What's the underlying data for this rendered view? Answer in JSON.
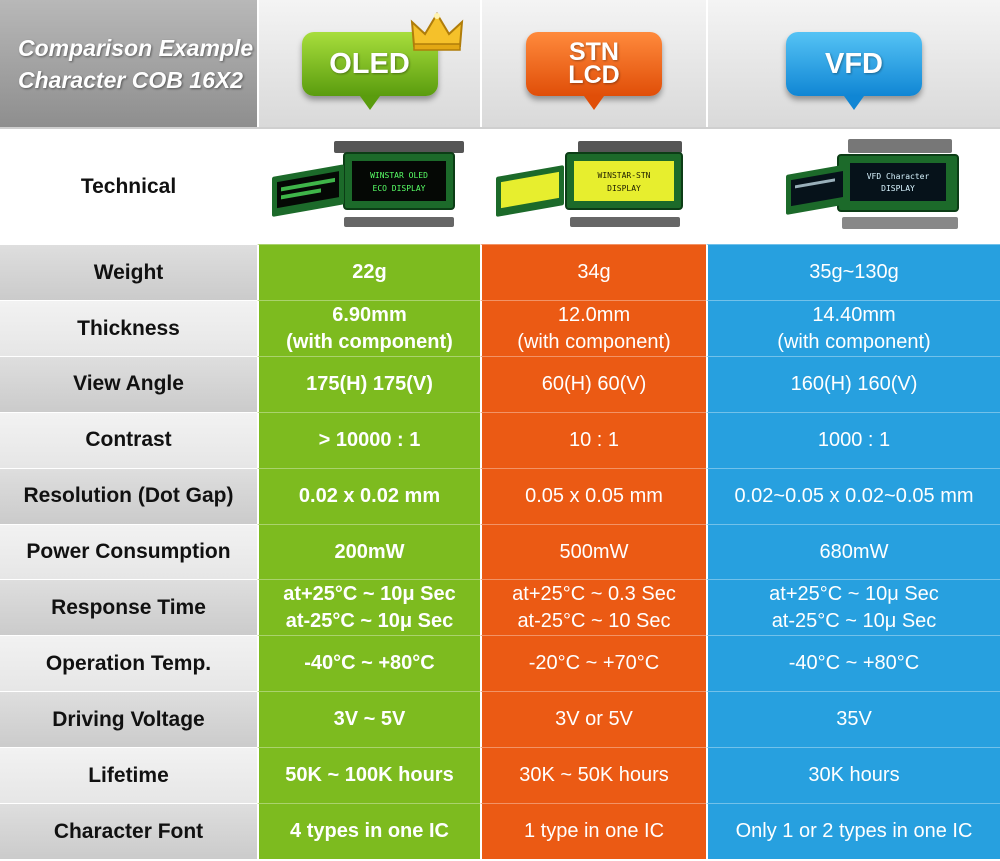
{
  "chart_data": {
    "type": "table",
    "caption_lines": [
      "Comparison Example",
      "Character COB 16X2"
    ],
    "columns": [
      {
        "label": "OLED",
        "color": "#7dbb1f"
      },
      {
        "label": "STN\nLCD",
        "color": "#eb5a14"
      },
      {
        "label": "VFD",
        "color": "#27a0df"
      }
    ],
    "technical_label": "Technical",
    "displays": [
      {
        "line1": "WINSTAR OLED",
        "line2": "ECO DISPLAY",
        "glow": "#58ff66"
      },
      {
        "line1": "WINSTAR-STN",
        "line2": "DISPLAY",
        "glow": "#1d1d00"
      },
      {
        "line1": "VFD Character",
        "line2": "DISPLAY",
        "glow": "#d8f4ff"
      }
    ],
    "rows": [
      {
        "label": "Weight",
        "values": [
          "22g",
          "34g",
          "35g~130g"
        ]
      },
      {
        "label": "Thickness",
        "values": [
          "6.90mm\n(with component)",
          "12.0mm\n(with component)",
          "14.40mm\n(with component)"
        ]
      },
      {
        "label": "View Angle",
        "values": [
          "175(H) 175(V)",
          "60(H) 60(V)",
          "160(H) 160(V)"
        ]
      },
      {
        "label": "Contrast",
        "values": [
          "> 10000 : 1",
          "10 : 1",
          "1000 : 1"
        ]
      },
      {
        "label": "Resolution (Dot Gap)",
        "values": [
          "0.02 x 0.02 mm",
          "0.05 x 0.05 mm",
          "0.02~0.05 x 0.02~0.05 mm"
        ]
      },
      {
        "label": "Power Consumption",
        "values": [
          "200mW",
          "500mW",
          "680mW"
        ]
      },
      {
        "label": "Response Time",
        "values": [
          "at+25°C ~ 10μ Sec\nat-25°C ~ 10μ Sec",
          "at+25°C ~ 0.3 Sec\nat-25°C ~ 10 Sec",
          "at+25°C ~ 10μ Sec\nat-25°C ~ 10μ Sec"
        ]
      },
      {
        "label": "Operation Temp.",
        "values": [
          "-40°C ~ +80°C",
          "-20°C ~ +70°C",
          "-40°C ~ +80°C"
        ]
      },
      {
        "label": "Driving Voltage",
        "values": [
          "3V ~ 5V",
          "3V or 5V",
          "35V"
        ]
      },
      {
        "label": "Lifetime",
        "values": [
          "50K ~ 100K hours",
          "30K ~ 50K hours",
          "30K hours"
        ]
      },
      {
        "label": "Character Font",
        "values": [
          "4 types in one IC",
          "1 type in one IC",
          "Only 1 or 2 types in one IC"
        ]
      }
    ]
  }
}
